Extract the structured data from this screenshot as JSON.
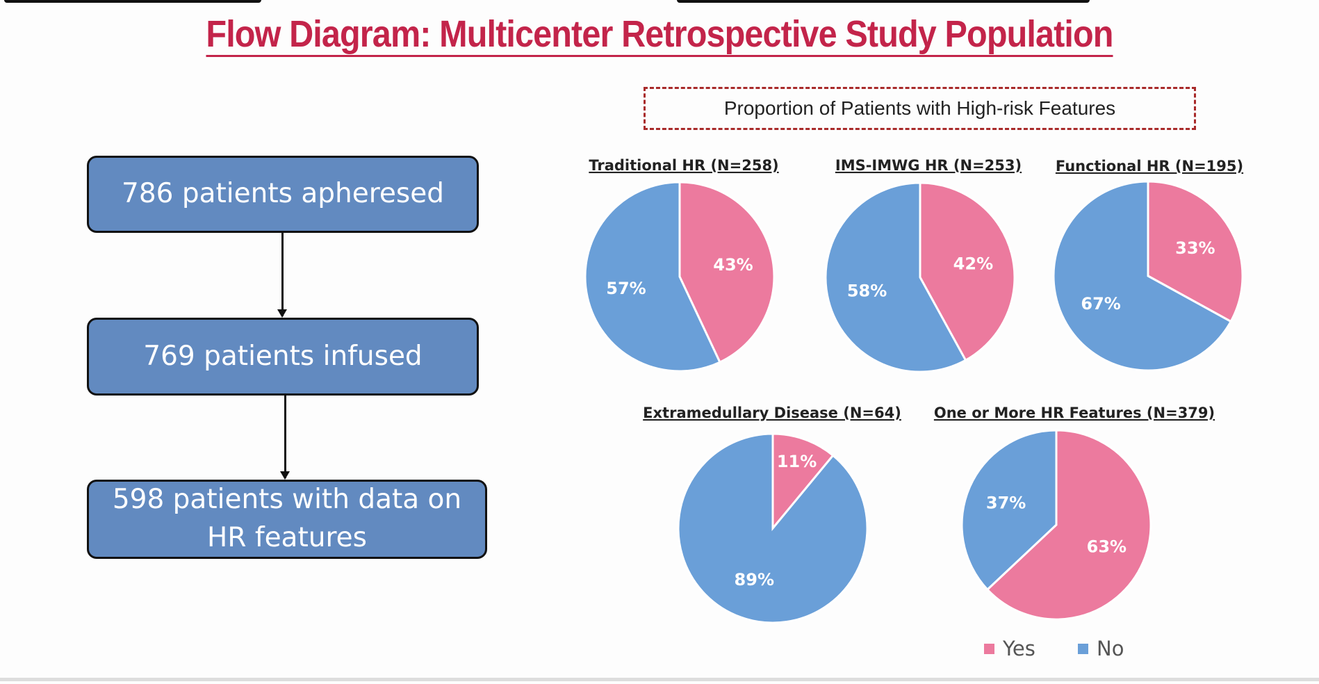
{
  "title": "Flow Diagram: Multicenter Retrospective Study Population",
  "flow": {
    "steps": [
      "786 patients apheresed",
      "769 patients infused",
      "598 patients with data on HR features"
    ]
  },
  "charts_heading": "Proportion of Patients with High-risk Features",
  "colors": {
    "yes": "#ec7a9e",
    "no": "#6a9fd8",
    "flow_box": "#628ac0",
    "title": "#c3244a"
  },
  "legend": {
    "yes": "Yes",
    "no": "No"
  },
  "chart_data": [
    {
      "type": "pie",
      "title": "Traditional HR (N=258)",
      "categories": [
        "Yes",
        "No"
      ],
      "values": [
        43,
        57
      ],
      "labels": [
        "43%",
        "57%"
      ]
    },
    {
      "type": "pie",
      "title": "IMS-IMWG HR (N=253)",
      "categories": [
        "Yes",
        "No"
      ],
      "values": [
        42,
        58
      ],
      "labels": [
        "42%",
        "58%"
      ]
    },
    {
      "type": "pie",
      "title": "Functional HR (N=195)",
      "categories": [
        "Yes",
        "No"
      ],
      "values": [
        33,
        67
      ],
      "labels": [
        "33%",
        "67%"
      ]
    },
    {
      "type": "pie",
      "title": "Extramedullary Disease (N=64)",
      "categories": [
        "Yes",
        "No"
      ],
      "values": [
        11,
        89
      ],
      "labels": [
        "11%",
        "89%"
      ]
    },
    {
      "type": "pie",
      "title": "One or More HR Features (N=379)",
      "categories": [
        "Yes",
        "No"
      ],
      "values": [
        63,
        37
      ],
      "labels": [
        "63%",
        "37%"
      ]
    }
  ]
}
